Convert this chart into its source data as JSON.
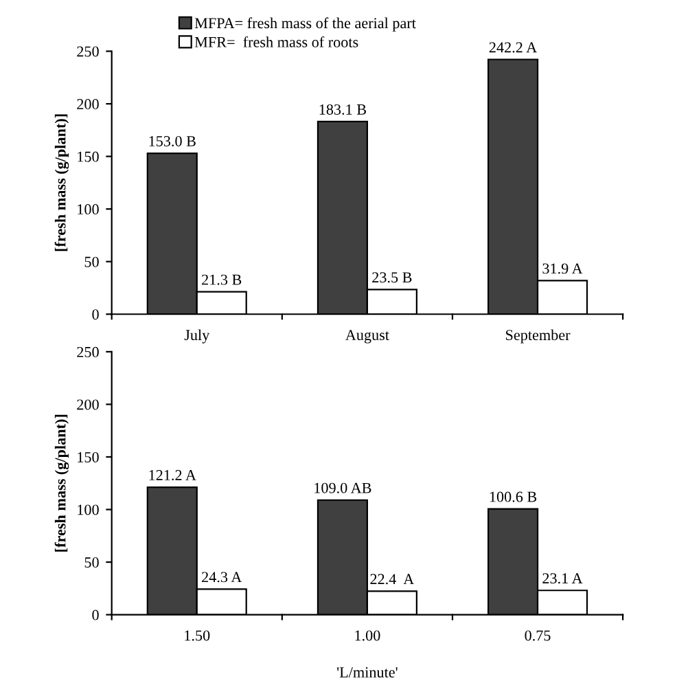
{
  "chart_data": [
    {
      "type": "bar",
      "categories": [
        "July",
        "August",
        "September"
      ],
      "ylabel": "[fresh mass (g/plant)]",
      "ylim": [
        0,
        250
      ],
      "yticks": [
        0,
        50,
        100,
        150,
        200,
        250
      ],
      "grid": false,
      "legend": "top",
      "series": [
        {
          "name": "MFPA= fresh mass of the aerial part",
          "color": "#404040",
          "values": [
            153.0,
            183.1,
            242.2
          ],
          "value_labels": [
            "153.0 B",
            "183.1 B",
            "242.2 A"
          ]
        },
        {
          "name": "MFR=  fresh mass of roots",
          "color": "#ffffff",
          "values": [
            21.3,
            23.5,
            31.9
          ],
          "value_labels": [
            "21.3 B",
            "23.5 B",
            "31.9 A"
          ]
        }
      ]
    },
    {
      "type": "bar",
      "categories": [
        "1.50",
        "1.00",
        "0.75"
      ],
      "xlabel": "'L/minute'",
      "ylabel": "[fresh mass (g/plant)]",
      "ylim": [
        0,
        250
      ],
      "yticks": [
        0,
        50,
        100,
        150,
        200,
        250
      ],
      "grid": false,
      "legend": false,
      "series": [
        {
          "color": "#404040",
          "values": [
            121.2,
            109.0,
            100.6
          ],
          "value_labels": [
            "121.2 A",
            "109.0 AB",
            "100.6 B"
          ]
        },
        {
          "color": "#ffffff",
          "values": [
            24.3,
            22.4,
            23.1
          ],
          "value_labels": [
            "24.3 A",
            "22.4  A",
            "23.1 A"
          ]
        }
      ]
    }
  ]
}
